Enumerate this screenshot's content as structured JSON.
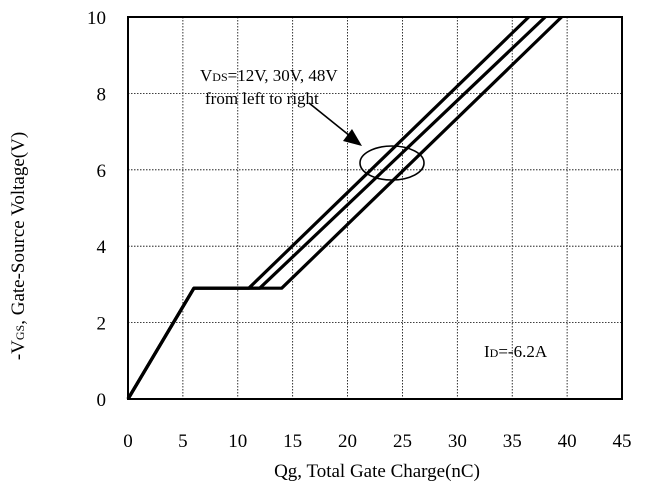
{
  "chart_data": {
    "type": "line",
    "title": "",
    "xlabel": "Qg, Total Gate Charge(nC)",
    "ylabel": {
      "prefix": "-V",
      "subscript": "GS",
      "suffix": ", Gate-Source Voltage(V)"
    },
    "xlim": [
      0,
      45
    ],
    "ylim": [
      0,
      10
    ],
    "x_ticks": [
      "0",
      "5",
      "10",
      "15",
      "20",
      "25",
      "30",
      "35",
      "40",
      "45"
    ],
    "y_ticks": [
      "0",
      "2",
      "4",
      "6",
      "8",
      "10"
    ],
    "grid": true,
    "series": [
      {
        "points": [
          [
            0,
            0
          ],
          [
            6,
            2.9
          ],
          [
            11,
            2.9
          ],
          [
            36.5,
            10
          ]
        ]
      },
      {
        "points": [
          [
            0,
            0
          ],
          [
            6,
            2.9
          ],
          [
            12,
            2.9
          ],
          [
            38,
            10
          ]
        ]
      },
      {
        "points": [
          [
            0,
            0
          ],
          [
            6,
            2.9
          ],
          [
            14,
            2.9
          ],
          [
            39.5,
            10
          ]
        ]
      }
    ],
    "annotations": {
      "vds_line1": {
        "main": "V",
        "sub": "DS",
        "rest": "=12V, 30V, 48V"
      },
      "vds_line2": "from left to right",
      "id_label": {
        "main": "I",
        "sub": "D",
        "rest": "=-6.2A"
      }
    }
  }
}
